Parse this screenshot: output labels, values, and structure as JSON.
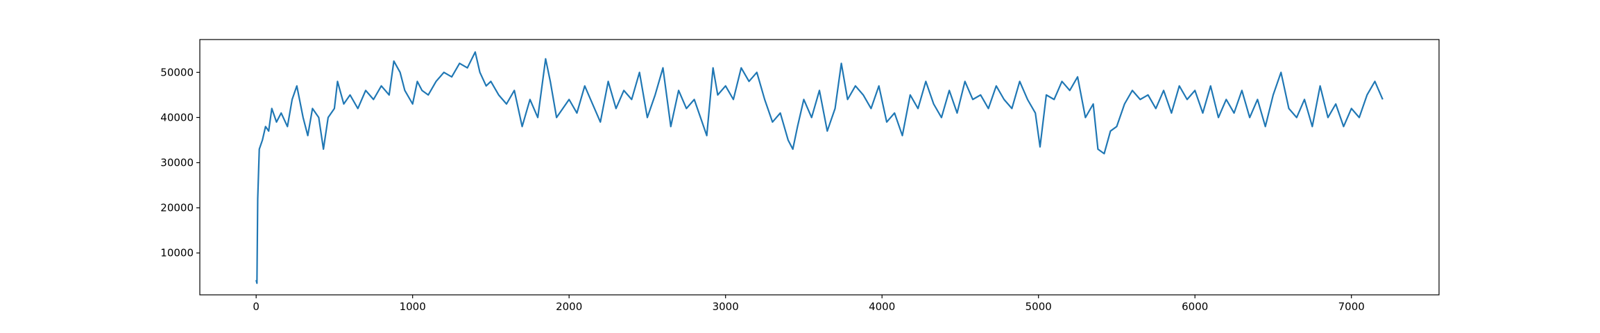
{
  "chart_data": {
    "type": "line",
    "color": "#1f77b4",
    "x": [
      0,
      5,
      10,
      20,
      40,
      60,
      80,
      100,
      130,
      160,
      200,
      230,
      260,
      300,
      330,
      360,
      400,
      430,
      460,
      500,
      520,
      560,
      600,
      650,
      700,
      750,
      800,
      850,
      880,
      920,
      950,
      1000,
      1030,
      1060,
      1100,
      1150,
      1200,
      1250,
      1300,
      1350,
      1400,
      1430,
      1470,
      1500,
      1550,
      1600,
      1650,
      1700,
      1750,
      1800,
      1850,
      1880,
      1920,
      1960,
      2000,
      2050,
      2100,
      2150,
      2200,
      2250,
      2300,
      2350,
      2400,
      2450,
      2500,
      2550,
      2600,
      2650,
      2700,
      2750,
      2800,
      2850,
      2880,
      2920,
      2950,
      3000,
      3050,
      3100,
      3150,
      3200,
      3250,
      3300,
      3350,
      3400,
      3430,
      3460,
      3500,
      3550,
      3600,
      3650,
      3700,
      3740,
      3780,
      3830,
      3880,
      3930,
      3980,
      4030,
      4080,
      4130,
      4180,
      4230,
      4280,
      4330,
      4380,
      4430,
      4480,
      4530,
      4580,
      4630,
      4680,
      4730,
      4780,
      4830,
      4880,
      4930,
      4980,
      5010,
      5050,
      5100,
      5150,
      5200,
      5250,
      5300,
      5350,
      5380,
      5420,
      5460,
      5500,
      5550,
      5600,
      5650,
      5700,
      5750,
      5800,
      5850,
      5900,
      5950,
      6000,
      6050,
      6100,
      6150,
      6200,
      6250,
      6300,
      6350,
      6400,
      6450,
      6500,
      6550,
      6600,
      6650,
      6700,
      6750,
      6800,
      6850,
      6900,
      6950,
      7000,
      7050,
      7100,
      7150,
      7200
    ],
    "values": [
      4000,
      3300,
      22000,
      33000,
      35000,
      38000,
      37000,
      42000,
      39000,
      41000,
      38000,
      44000,
      47000,
      40000,
      36000,
      42000,
      40000,
      33000,
      40000,
      42000,
      48000,
      43000,
      45000,
      42000,
      46000,
      44000,
      47000,
      45000,
      52500,
      50000,
      46000,
      43000,
      48000,
      46000,
      45000,
      48000,
      50000,
      49000,
      52000,
      51000,
      54500,
      50000,
      47000,
      48000,
      45000,
      43000,
      46000,
      38000,
      44000,
      40000,
      53000,
      48000,
      40000,
      42000,
      44000,
      41000,
      47000,
      43000,
      39000,
      48000,
      42000,
      46000,
      44000,
      50000,
      40000,
      45000,
      51000,
      38000,
      46000,
      42000,
      44000,
      39000,
      36000,
      51000,
      45000,
      47000,
      44000,
      51000,
      48000,
      50000,
      44000,
      39000,
      41000,
      35000,
      33000,
      38000,
      44000,
      40000,
      46000,
      37000,
      42000,
      52000,
      44000,
      47000,
      45000,
      42000,
      47000,
      39000,
      41000,
      36000,
      45000,
      42000,
      48000,
      43000,
      40000,
      46000,
      41000,
      48000,
      44000,
      45000,
      42000,
      47000,
      44000,
      42000,
      48000,
      44000,
      41000,
      33500,
      45000,
      44000,
      48000,
      46000,
      49000,
      40000,
      43000,
      33000,
      32000,
      37000,
      38000,
      43000,
      46000,
      44000,
      45000,
      42000,
      46000,
      41000,
      47000,
      44000,
      46000,
      41000,
      47000,
      40000,
      44000,
      41000,
      46000,
      40000,
      44000,
      38000,
      45000,
      50000,
      42000,
      40000,
      44000,
      38000,
      47000,
      40000,
      43000,
      38000,
      42000,
      40000,
      45000,
      48000,
      44000
    ],
    "xlim": [
      -360,
      7560
    ],
    "ylim": [
      730,
      57270
    ],
    "xticks": [
      0,
      1000,
      2000,
      3000,
      4000,
      5000,
      6000,
      7000
    ],
    "yticks": [
      10000,
      20000,
      30000,
      40000,
      50000
    ]
  }
}
